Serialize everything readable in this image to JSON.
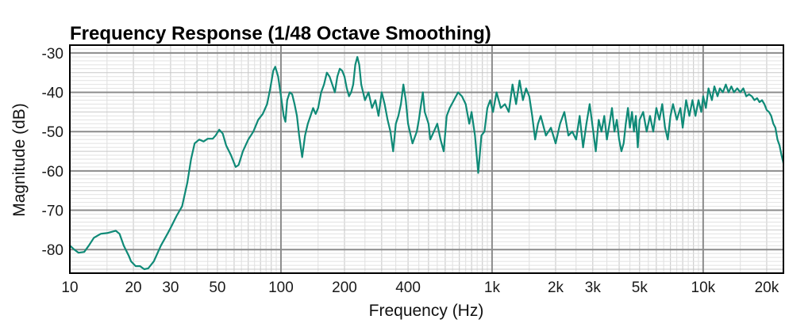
{
  "chart_data": {
    "type": "line",
    "title": "Frequency Response (1/48 Octave Smoothing)",
    "xlabel": "Frequency (Hz)",
    "ylabel": "Magnitude (dB)",
    "x_scale": "log",
    "xlim": [
      10,
      24000
    ],
    "ylim": [
      -86,
      -28
    ],
    "grid": true,
    "x_ticks": [
      {
        "value": 10,
        "label": "10"
      },
      {
        "value": 20,
        "label": "20"
      },
      {
        "value": 30,
        "label": "30"
      },
      {
        "value": 50,
        "label": "50"
      },
      {
        "value": 100,
        "label": "100"
      },
      {
        "value": 200,
        "label": "200"
      },
      {
        "value": 400,
        "label": "400"
      },
      {
        "value": 1000,
        "label": "1k"
      },
      {
        "value": 2000,
        "label": "2k"
      },
      {
        "value": 3000,
        "label": "3k"
      },
      {
        "value": 5000,
        "label": "5k"
      },
      {
        "value": 10000,
        "label": "10k"
      },
      {
        "value": 20000,
        "label": "20k"
      }
    ],
    "y_ticks": [
      {
        "value": -30,
        "label": "-30"
      },
      {
        "value": -40,
        "label": "-40"
      },
      {
        "value": -50,
        "label": "-50"
      },
      {
        "value": -60,
        "label": "-60"
      },
      {
        "value": -70,
        "label": "-70"
      },
      {
        "value": -80,
        "label": "-80"
      }
    ],
    "series": [
      {
        "color": "#0f8a77",
        "points": [
          [
            10,
            -79
          ],
          [
            10.5,
            -80
          ],
          [
            11,
            -80.8
          ],
          [
            11.7,
            -80.6
          ],
          [
            12.3,
            -79
          ],
          [
            13,
            -77
          ],
          [
            14,
            -76
          ],
          [
            15,
            -75.8
          ],
          [
            16.5,
            -75.2
          ],
          [
            17.2,
            -76
          ],
          [
            18,
            -79
          ],
          [
            19,
            -81.5
          ],
          [
            19.5,
            -83
          ],
          [
            20.5,
            -84.2
          ],
          [
            21.5,
            -84.2
          ],
          [
            22.5,
            -85
          ],
          [
            23.5,
            -84.8
          ],
          [
            25,
            -83
          ],
          [
            27,
            -79
          ],
          [
            29,
            -76
          ],
          [
            30,
            -74.5
          ],
          [
            32,
            -71.5
          ],
          [
            34,
            -69
          ],
          [
            36,
            -63
          ],
          [
            37.5,
            -57
          ],
          [
            39,
            -53
          ],
          [
            41,
            -52
          ],
          [
            43,
            -52.5
          ],
          [
            45,
            -51.8
          ],
          [
            47.5,
            -51.8
          ],
          [
            49,
            -51
          ],
          [
            51,
            -49.5
          ],
          [
            53,
            -50.5
          ],
          [
            55,
            -53.5
          ],
          [
            58,
            -56
          ],
          [
            61,
            -59
          ],
          [
            63,
            -58.5
          ],
          [
            66,
            -55
          ],
          [
            70,
            -52
          ],
          [
            74,
            -50
          ],
          [
            78,
            -47
          ],
          [
            82,
            -45.5
          ],
          [
            86,
            -43
          ],
          [
            89,
            -39
          ],
          [
            92,
            -34.5
          ],
          [
            94,
            -33.5
          ],
          [
            97,
            -36
          ],
          [
            100,
            -41
          ],
          [
            103,
            -46
          ],
          [
            105,
            -47.5
          ],
          [
            107,
            -42
          ],
          [
            110,
            -40
          ],
          [
            113,
            -40.5
          ],
          [
            116,
            -43
          ],
          [
            119,
            -46
          ],
          [
            122,
            -51
          ],
          [
            126,
            -56.5
          ],
          [
            130,
            -51
          ],
          [
            134,
            -48
          ],
          [
            138,
            -46
          ],
          [
            142,
            -44
          ],
          [
            146,
            -45.5
          ],
          [
            150,
            -44
          ],
          [
            155,
            -40
          ],
          [
            160,
            -38
          ],
          [
            165,
            -35
          ],
          [
            170,
            -36
          ],
          [
            175,
            -38
          ],
          [
            180,
            -40
          ],
          [
            185,
            -36
          ],
          [
            190,
            -34
          ],
          [
            195,
            -34.5
          ],
          [
            200,
            -36
          ],
          [
            205,
            -39
          ],
          [
            210,
            -41
          ],
          [
            215,
            -40
          ],
          [
            220,
            -38
          ],
          [
            225,
            -33
          ],
          [
            230,
            -31
          ],
          [
            235,
            -33
          ],
          [
            240,
            -38
          ],
          [
            250,
            -42
          ],
          [
            260,
            -40
          ],
          [
            270,
            -44
          ],
          [
            280,
            -42
          ],
          [
            290,
            -46
          ],
          [
            300,
            -40
          ],
          [
            310,
            -43
          ],
          [
            320,
            -47
          ],
          [
            330,
            -50
          ],
          [
            340,
            -55
          ],
          [
            350,
            -48
          ],
          [
            360,
            -46
          ],
          [
            370,
            -43
          ],
          [
            380,
            -38
          ],
          [
            390,
            -42
          ],
          [
            400,
            -48
          ],
          [
            420,
            -53
          ],
          [
            440,
            -50
          ],
          [
            450,
            -47
          ],
          [
            470,
            -40
          ],
          [
            480,
            -45
          ],
          [
            500,
            -48
          ],
          [
            510,
            -52
          ],
          [
            530,
            -50
          ],
          [
            550,
            -48
          ],
          [
            570,
            -52
          ],
          [
            590,
            -55
          ],
          [
            610,
            -46
          ],
          [
            630,
            -44
          ],
          [
            660,
            -42
          ],
          [
            690,
            -40
          ],
          [
            720,
            -41
          ],
          [
            750,
            -43
          ],
          [
            780,
            -48
          ],
          [
            800,
            -45
          ],
          [
            830,
            -51
          ],
          [
            860,
            -60.5
          ],
          [
            890,
            -51
          ],
          [
            920,
            -50
          ],
          [
            950,
            -44
          ],
          [
            980,
            -42
          ],
          [
            1010,
            -45
          ],
          [
            1050,
            -40
          ],
          [
            1100,
            -44
          ],
          [
            1150,
            -43
          ],
          [
            1200,
            -45
          ],
          [
            1250,
            -38
          ],
          [
            1300,
            -43
          ],
          [
            1350,
            -37
          ],
          [
            1400,
            -42
          ],
          [
            1450,
            -39
          ],
          [
            1500,
            -41
          ],
          [
            1550,
            -46
          ],
          [
            1600,
            -52
          ],
          [
            1650,
            -48
          ],
          [
            1700,
            -46
          ],
          [
            1800,
            -51
          ],
          [
            1900,
            -49
          ],
          [
            2000,
            -53
          ],
          [
            2100,
            -48
          ],
          [
            2200,
            -45
          ],
          [
            2300,
            -51
          ],
          [
            2400,
            -50
          ],
          [
            2500,
            -52
          ],
          [
            2600,
            -46
          ],
          [
            2700,
            -54
          ],
          [
            2800,
            -48
          ],
          [
            2900,
            -43
          ],
          [
            3000,
            -49
          ],
          [
            3100,
            -55
          ],
          [
            3200,
            -47
          ],
          [
            3300,
            -50
          ],
          [
            3400,
            -46
          ],
          [
            3500,
            -52
          ],
          [
            3600,
            -48
          ],
          [
            3700,
            -44
          ],
          [
            3800,
            -50
          ],
          [
            3900,
            -47
          ],
          [
            4000,
            -52
          ],
          [
            4100,
            -55
          ],
          [
            4200,
            -53
          ],
          [
            4300,
            -48
          ],
          [
            4400,
            -44
          ],
          [
            4500,
            -49
          ],
          [
            4600,
            -45
          ],
          [
            4700,
            -50
          ],
          [
            4800,
            -46
          ],
          [
            4900,
            -54
          ],
          [
            5000,
            -47
          ],
          [
            5200,
            -45
          ],
          [
            5400,
            -50
          ],
          [
            5600,
            -46
          ],
          [
            5800,
            -50
          ],
          [
            6000,
            -44
          ],
          [
            6200,
            -47
          ],
          [
            6400,
            -43
          ],
          [
            6600,
            -49
          ],
          [
            6800,
            -52
          ],
          [
            7000,
            -46
          ],
          [
            7200,
            -43
          ],
          [
            7500,
            -47
          ],
          [
            7800,
            -44
          ],
          [
            8000,
            -49
          ],
          [
            8300,
            -42
          ],
          [
            8600,
            -46
          ],
          [
            8900,
            -42
          ],
          [
            9200,
            -46
          ],
          [
            9500,
            -42
          ],
          [
            9800,
            -45
          ],
          [
            10000,
            -41
          ],
          [
            10300,
            -44
          ],
          [
            10600,
            -39
          ],
          [
            11000,
            -42
          ],
          [
            11300,
            -38.5
          ],
          [
            11700,
            -41
          ],
          [
            12000,
            -39
          ],
          [
            12400,
            -40
          ],
          [
            12800,
            -38
          ],
          [
            13200,
            -40
          ],
          [
            13600,
            -38.5
          ],
          [
            14000,
            -40
          ],
          [
            14500,
            -39
          ],
          [
            15000,
            -40
          ],
          [
            15500,
            -39
          ],
          [
            16000,
            -41
          ],
          [
            16500,
            -40.5
          ],
          [
            17000,
            -41
          ],
          [
            17500,
            -42
          ],
          [
            18000,
            -41.5
          ],
          [
            18500,
            -42.5
          ],
          [
            19000,
            -42
          ],
          [
            19500,
            -43
          ],
          [
            20000,
            -44.5
          ],
          [
            20500,
            -45
          ],
          [
            21000,
            -46
          ],
          [
            21500,
            -48
          ],
          [
            22000,
            -49
          ],
          [
            22500,
            -52
          ],
          [
            23000,
            -53.5
          ],
          [
            23500,
            -56
          ],
          [
            24000,
            -58
          ]
        ]
      }
    ]
  }
}
